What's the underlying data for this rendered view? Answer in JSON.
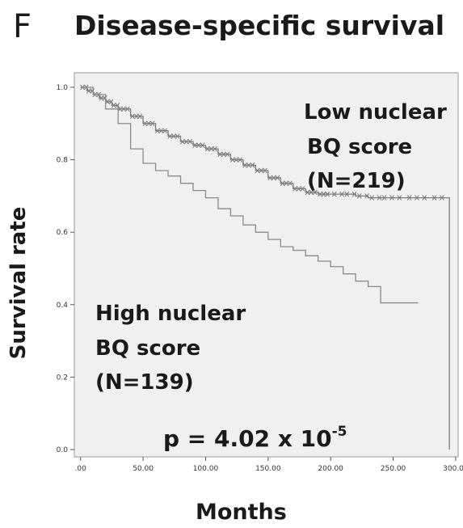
{
  "panel_label": "F",
  "chart_data": {
    "type": "line",
    "title": "Disease-specific survival",
    "xlabel": "Months",
    "ylabel": "Survival rate",
    "xlim": [
      -5,
      302
    ],
    "ylim": [
      -0.02,
      1.04
    ],
    "xticks": [
      0,
      50,
      100,
      150,
      200,
      250,
      300
    ],
    "xtick_labels": [
      ".00",
      "50.00",
      "100.00",
      "150.00",
      "200.00",
      "250.00",
      "300.00"
    ],
    "yticks": [
      0.0,
      0.2,
      0.4,
      0.6,
      0.8,
      1.0
    ],
    "ytick_labels": [
      "0.0",
      "0.2",
      "0.4",
      "0.6",
      "0.8",
      "1.0"
    ],
    "background": "#f0f0f0",
    "grid": false,
    "series": [
      {
        "name": "Low nuclear BQ score (N=219)",
        "color": "#7a7a7a",
        "censored_marks": true,
        "x": [
          0,
          5,
          10,
          15,
          20,
          25,
          30,
          40,
          50,
          60,
          70,
          80,
          90,
          100,
          110,
          120,
          130,
          140,
          150,
          160,
          170,
          180,
          190,
          200,
          210,
          220,
          230,
          240,
          260,
          280,
          295,
          295
        ],
        "y": [
          1.0,
          0.99,
          0.98,
          0.97,
          0.96,
          0.95,
          0.94,
          0.92,
          0.9,
          0.88,
          0.865,
          0.85,
          0.84,
          0.83,
          0.815,
          0.8,
          0.785,
          0.77,
          0.75,
          0.735,
          0.72,
          0.71,
          0.705,
          0.705,
          0.705,
          0.7,
          0.695,
          0.695,
          0.695,
          0.695,
          0.695,
          0.0
        ]
      },
      {
        "name": "High nuclear BQ score (N=139)",
        "color": "#8a8a8a",
        "censored_marks": false,
        "x": [
          0,
          10,
          20,
          30,
          40,
          50,
          60,
          70,
          80,
          90,
          100,
          110,
          120,
          130,
          140,
          150,
          160,
          170,
          180,
          190,
          200,
          210,
          220,
          230,
          240,
          255,
          270
        ],
        "y": [
          1.0,
          0.98,
          0.94,
          0.9,
          0.83,
          0.79,
          0.77,
          0.755,
          0.735,
          0.715,
          0.695,
          0.665,
          0.645,
          0.62,
          0.6,
          0.58,
          0.56,
          0.55,
          0.535,
          0.52,
          0.505,
          0.485,
          0.465,
          0.45,
          0.405,
          0.405,
          0.405
        ]
      }
    ],
    "annotations": {
      "low_group": [
        "Low nuclear",
        "BQ score",
        "(N=219)"
      ],
      "high_group": [
        "High nuclear",
        "BQ score",
        "(N=139)"
      ],
      "p_value_main": "p = 4.02 x 10",
      "p_value_exp": "-5"
    }
  }
}
